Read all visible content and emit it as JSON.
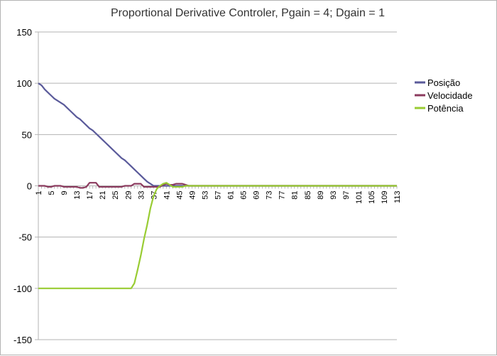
{
  "chart_data": {
    "type": "line",
    "title": "Proportional Derivative Controler, Pgain = 4; Dgain = 1",
    "xlabel": "",
    "ylabel": "",
    "ylim": [
      -150,
      150
    ],
    "yticks": [
      -150,
      -100,
      -50,
      0,
      50,
      100,
      150
    ],
    "x": [
      1,
      2,
      3,
      4,
      5,
      6,
      7,
      8,
      9,
      10,
      11,
      12,
      13,
      14,
      15,
      16,
      17,
      18,
      19,
      20,
      21,
      22,
      23,
      24,
      25,
      26,
      27,
      28,
      29,
      30,
      31,
      32,
      33,
      34,
      35,
      36,
      37,
      38,
      39,
      40,
      41,
      42,
      43,
      44,
      45,
      46,
      47,
      48,
      49,
      50,
      51,
      52,
      53,
      54,
      55,
      56,
      57,
      58,
      59,
      60,
      61,
      62,
      63,
      64,
      65,
      66,
      67,
      68,
      69,
      70,
      71,
      72,
      73,
      74,
      75,
      76,
      77,
      78,
      79,
      80,
      81,
      82,
      83,
      84,
      85,
      86,
      87,
      88,
      89,
      90,
      91,
      92,
      93,
      94,
      95,
      96,
      97,
      98,
      99,
      100,
      101,
      102,
      103,
      104,
      105,
      106,
      107,
      108,
      109,
      110,
      111,
      112,
      113
    ],
    "xtick_labels": [
      "1",
      "5",
      "9",
      "13",
      "17",
      "21",
      "25",
      "29",
      "33",
      "37",
      "41",
      "45",
      "49",
      "53",
      "57",
      "61",
      "65",
      "69",
      "73",
      "77",
      "81",
      "85",
      "89",
      "93",
      "97",
      "101",
      "105",
      "109",
      "113"
    ],
    "grid": "horizontal",
    "legend_position": "right",
    "series": [
      {
        "name": "Posição",
        "color": "#5a5a9a",
        "values": [
          100,
          98,
          94,
          91,
          88,
          85,
          83,
          81,
          79,
          76,
          73,
          70,
          67,
          65,
          62,
          59,
          56,
          54,
          51,
          48,
          45,
          42,
          39,
          36,
          33,
          30,
          27,
          25,
          22,
          19,
          16,
          13,
          10,
          7,
          4,
          2,
          0,
          0,
          0,
          0,
          0,
          0,
          0,
          0,
          0,
          0,
          0,
          0,
          0,
          0,
          0,
          0,
          0,
          0,
          0,
          0,
          0,
          0,
          0,
          0,
          0,
          0,
          0,
          0,
          0,
          0,
          0,
          0,
          0,
          0,
          0,
          0,
          0,
          0,
          0,
          0,
          0,
          0,
          0,
          0,
          0,
          0,
          0,
          0,
          0,
          0,
          0,
          0,
          0,
          0,
          0,
          0,
          0,
          0,
          0,
          0,
          0,
          0,
          0,
          0,
          0,
          0,
          0,
          0,
          0,
          0,
          0,
          0,
          0,
          0,
          0,
          0,
          0
        ]
      },
      {
        "name": "Velocidade",
        "color": "#8b3a5e",
        "values": [
          0,
          0,
          0,
          -1,
          -1,
          0,
          0,
          0,
          -1,
          -1,
          -1,
          -1,
          -1,
          -2,
          -2,
          -1,
          3,
          3,
          3,
          -1,
          -1,
          -1,
          -1,
          -1,
          -1,
          -1,
          -1,
          0,
          0,
          0,
          2,
          2,
          2,
          -1,
          -1,
          -1,
          -1,
          -1,
          -1,
          1,
          2,
          1,
          1,
          2,
          2,
          2,
          1,
          0,
          0,
          0,
          0,
          0,
          0,
          0,
          0,
          0,
          0,
          0,
          0,
          0,
          0,
          0,
          0,
          0,
          0,
          0,
          0,
          0,
          0,
          0,
          0,
          0,
          0,
          0,
          0,
          0,
          0,
          0,
          0,
          0,
          0,
          0,
          0,
          0,
          0,
          0,
          0,
          0,
          0,
          0,
          0,
          0,
          0,
          0,
          0,
          0,
          0,
          0,
          0,
          0,
          0,
          0,
          0,
          0,
          0,
          0,
          0,
          0,
          0,
          0,
          0,
          0,
          0
        ]
      },
      {
        "name": "Potência",
        "color": "#99cc33",
        "values": [
          -100,
          -100,
          -100,
          -100,
          -100,
          -100,
          -100,
          -100,
          -100,
          -100,
          -100,
          -100,
          -100,
          -100,
          -100,
          -100,
          -100,
          -100,
          -100,
          -100,
          -100,
          -100,
          -100,
          -100,
          -100,
          -100,
          -100,
          -100,
          -100,
          -100,
          -95,
          -82,
          -68,
          -52,
          -38,
          -22,
          -10,
          -3,
          0,
          2,
          3,
          1,
          -1,
          -1,
          -1,
          -1,
          0,
          0,
          0,
          0,
          0,
          0,
          0,
          0,
          0,
          0,
          0,
          0,
          0,
          0,
          0,
          0,
          0,
          0,
          0,
          0,
          0,
          0,
          0,
          0,
          0,
          0,
          0,
          0,
          0,
          0,
          0,
          0,
          0,
          0,
          0,
          0,
          0,
          0,
          0,
          0,
          0,
          0,
          0,
          0,
          0,
          0,
          0,
          0,
          0,
          0,
          0,
          0,
          0,
          0,
          0,
          0,
          0,
          0,
          0,
          0,
          0,
          0,
          0,
          0,
          0,
          0,
          0
        ]
      }
    ]
  }
}
